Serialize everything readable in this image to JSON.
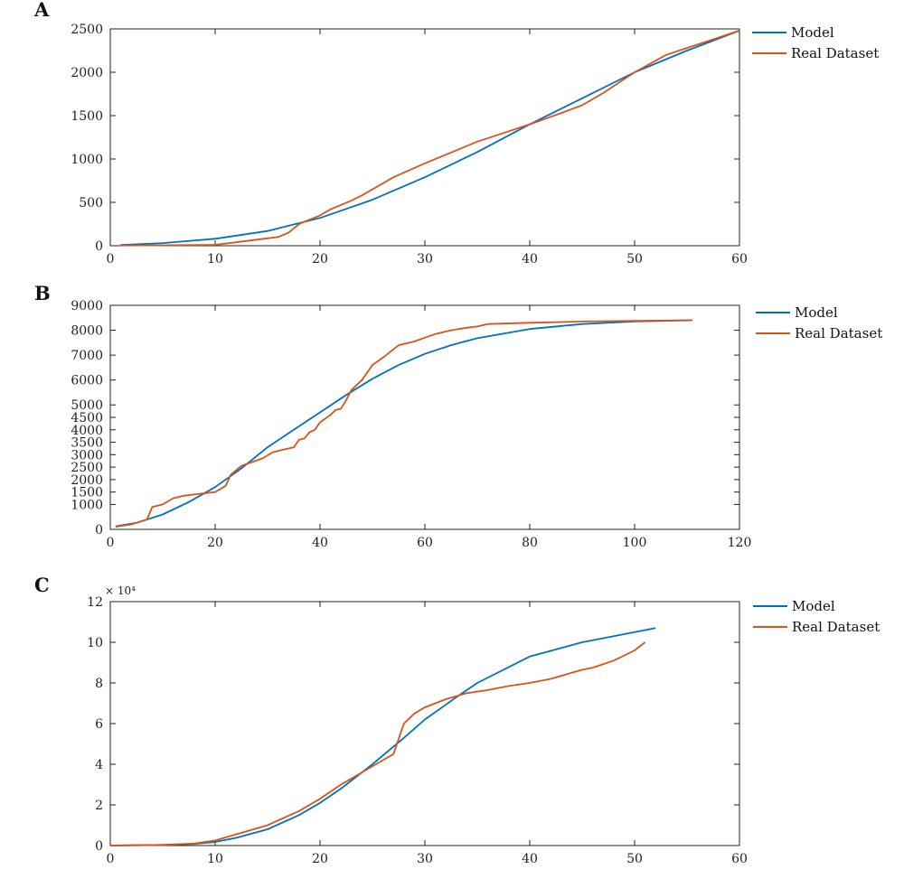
{
  "colors": {
    "model": "#0072BD",
    "real": "#D95319",
    "axis": "#222222"
  },
  "chart_data": [
    {
      "type": "line",
      "panel": "A",
      "xlim": [
        0,
        60
      ],
      "ylim": [
        0,
        2500
      ],
      "xticks": [
        0,
        10,
        20,
        30,
        40,
        50,
        60
      ],
      "yticks": [
        0,
        500,
        1000,
        1500,
        2000,
        2500
      ],
      "y_exponent_label": "",
      "grid": false,
      "legend_position": "top-right outside",
      "series": [
        {
          "name": "Model",
          "color_key": "model",
          "x": [
            1,
            5,
            10,
            15,
            18,
            20,
            25,
            30,
            35,
            40,
            45,
            50,
            55,
            60
          ],
          "y": [
            8,
            30,
            80,
            170,
            260,
            320,
            530,
            790,
            1080,
            1400,
            1700,
            2000,
            2250,
            2480
          ]
        },
        {
          "name": "Real Dataset",
          "color_key": "real",
          "x": [
            1,
            5,
            10,
            11,
            13,
            15,
            16,
            17,
            18,
            19,
            20,
            21,
            22,
            23,
            24,
            25,
            27,
            30,
            33,
            35,
            38,
            40,
            43,
            45,
            47,
            50,
            53,
            55,
            58,
            60
          ],
          "y": [
            3,
            5,
            10,
            25,
            55,
            85,
            100,
            150,
            250,
            300,
            350,
            420,
            470,
            520,
            580,
            650,
            790,
            950,
            1100,
            1200,
            1320,
            1400,
            1530,
            1620,
            1760,
            2000,
            2200,
            2280,
            2400,
            2480
          ]
        }
      ]
    },
    {
      "type": "line",
      "panel": "B",
      "xlim": [
        0,
        120
      ],
      "ylim": [
        0,
        9000
      ],
      "xticks": [
        0,
        20,
        40,
        60,
        80,
        100,
        120
      ],
      "yticks": [
        0,
        1000,
        1500,
        2000,
        2500,
        3000,
        3500,
        4000,
        4500,
        5000,
        6000,
        7000,
        8000,
        9000
      ],
      "y_exponent_label": "",
      "grid": false,
      "legend_position": "top-right outside",
      "series": [
        {
          "name": "Model",
          "color_key": "model",
          "x": [
            1,
            5,
            10,
            15,
            20,
            25,
            30,
            35,
            40,
            45,
            50,
            55,
            60,
            65,
            70,
            80,
            90,
            100,
            111
          ],
          "y": [
            120,
            260,
            600,
            1100,
            1700,
            2450,
            3300,
            4000,
            4700,
            5400,
            6050,
            6600,
            7050,
            7400,
            7680,
            8050,
            8250,
            8350,
            8400
          ]
        },
        {
          "name": "Real Dataset",
          "color_key": "real",
          "x": [
            1,
            4,
            7,
            8,
            10,
            12,
            14,
            16,
            18,
            20,
            22,
            23,
            25,
            27,
            29,
            31,
            33,
            35,
            36,
            37,
            38,
            39,
            40,
            41,
            42,
            43,
            44,
            45,
            46,
            48,
            50,
            52,
            55,
            58,
            60,
            62,
            65,
            68,
            70,
            72,
            80,
            90,
            100,
            111
          ],
          "y": [
            100,
            200,
            400,
            900,
            1000,
            1250,
            1350,
            1400,
            1450,
            1500,
            1750,
            2200,
            2550,
            2700,
            2850,
            3100,
            3200,
            3300,
            3600,
            3650,
            3900,
            4000,
            4300,
            4450,
            4600,
            4800,
            4850,
            5200,
            5600,
            6000,
            6600,
            6900,
            7400,
            7550,
            7700,
            7850,
            8000,
            8100,
            8150,
            8250,
            8300,
            8350,
            8380,
            8400
          ]
        }
      ]
    },
    {
      "type": "line",
      "panel": "C",
      "xlim": [
        0,
        60
      ],
      "ylim": [
        0,
        12
      ],
      "xticks": [
        0,
        10,
        20,
        30,
        40,
        50,
        60
      ],
      "yticks": [
        0,
        2,
        4,
        6,
        8,
        10,
        12
      ],
      "y_exponent_label": "× 10⁴",
      "grid": false,
      "legend_position": "top-right outside",
      "series": [
        {
          "name": "Model",
          "color_key": "model",
          "x": [
            0,
            5,
            8,
            10,
            12,
            15,
            18,
            20,
            22,
            25,
            28,
            30,
            33,
            35,
            40,
            45,
            50,
            52
          ],
          "y": [
            0,
            0.03,
            0.08,
            0.18,
            0.38,
            0.8,
            1.5,
            2.1,
            2.8,
            4.0,
            5.3,
            6.2,
            7.3,
            8.0,
            9.3,
            10.0,
            10.5,
            10.7
          ]
        },
        {
          "name": "Real Dataset",
          "color_key": "real",
          "x": [
            0,
            5,
            8,
            10,
            12,
            15,
            18,
            20,
            22,
            24,
            26,
            27,
            28,
            29,
            30,
            32,
            34,
            36,
            38,
            40,
            42,
            44,
            45,
            46,
            48,
            50,
            51
          ],
          "y": [
            0,
            0.03,
            0.1,
            0.25,
            0.55,
            1.0,
            1.7,
            2.3,
            3.0,
            3.6,
            4.2,
            4.5,
            6.0,
            6.5,
            6.8,
            7.2,
            7.5,
            7.65,
            7.85,
            8.0,
            8.2,
            8.5,
            8.65,
            8.75,
            9.1,
            9.6,
            10.0
          ]
        }
      ]
    }
  ]
}
